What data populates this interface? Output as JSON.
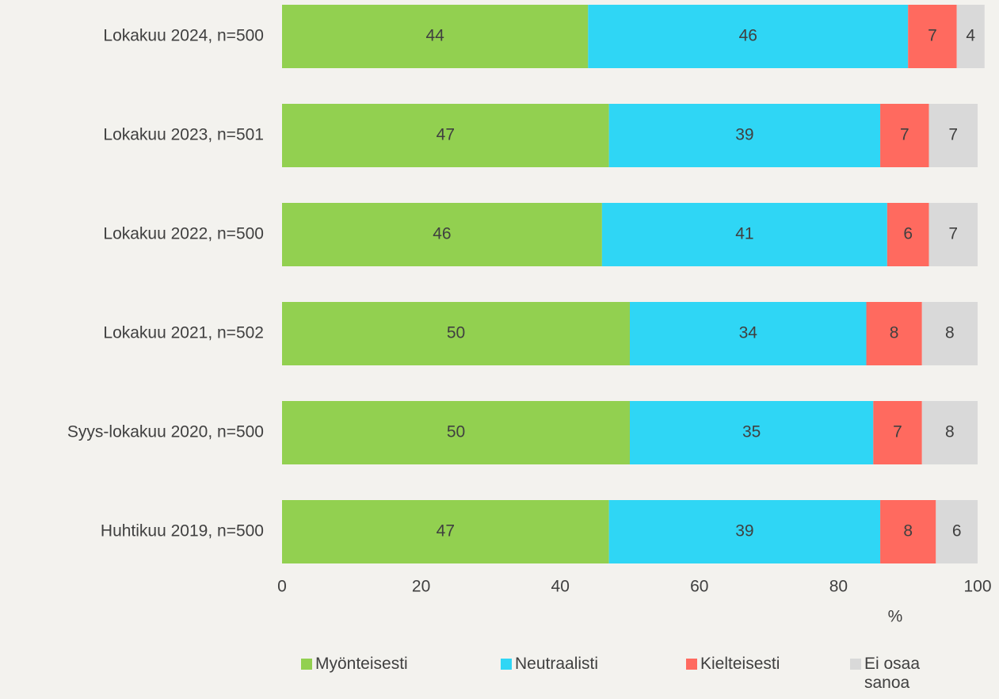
{
  "chart_data": {
    "type": "stacked_barh",
    "categories": [
      "Lokakuu 2024, n=500",
      "Lokakuu 2023, n=501",
      "Lokakuu 2022, n=500",
      "Lokakuu 2021, n=502",
      "Syys-lokakuu 2020, n=500",
      "Huhtikuu 2019, n=500"
    ],
    "series": [
      {
        "name": "Myönteisesti",
        "color": "#92d050",
        "values": [
          44,
          47,
          46,
          50,
          50,
          47
        ]
      },
      {
        "name": "Neutraalisti",
        "color": "#2fd6f5",
        "values": [
          46,
          39,
          41,
          34,
          35,
          39
        ]
      },
      {
        "name": "Kielteisesti",
        "color": "#ff6a5f",
        "values": [
          7,
          7,
          6,
          8,
          7,
          8
        ]
      },
      {
        "name": "Ei osaa sanoa",
        "color": "#d9d9d9",
        "values": [
          4,
          7,
          7,
          8,
          8,
          6
        ]
      }
    ],
    "x_label": "%",
    "xlim": [
      0,
      100
    ],
    "xticks": [
      0,
      20,
      40,
      60,
      80,
      100
    ],
    "grid": false
  }
}
